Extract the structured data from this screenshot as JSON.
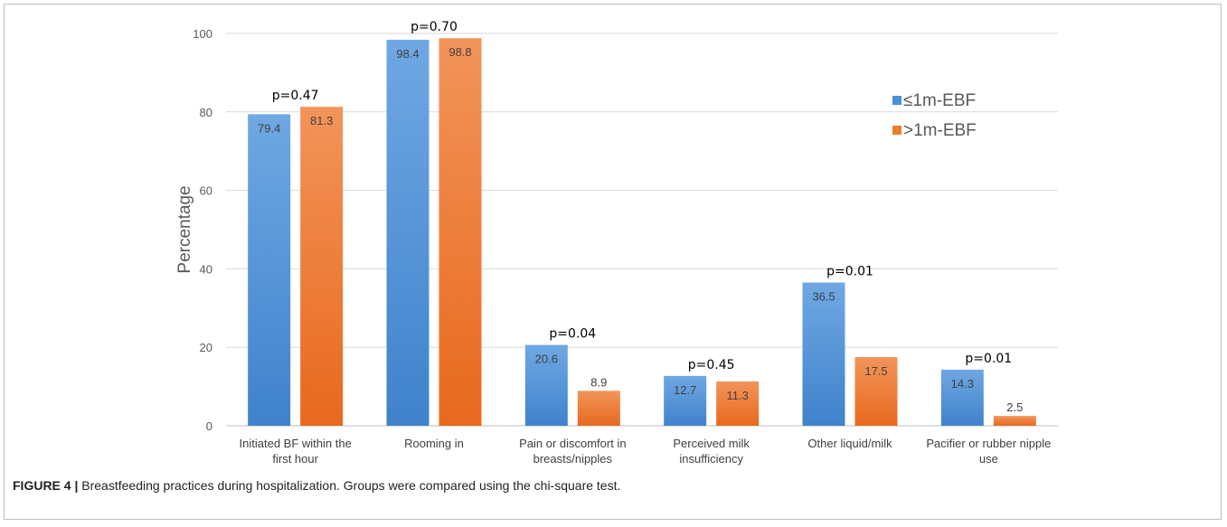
{
  "caption": {
    "label": "FIGURE 4 |",
    "text": " Breastfeeding practices during hospitalization. Groups were compared using the chi-square test."
  },
  "chart_data": {
    "type": "bar",
    "ylabel": "Percentage",
    "ylim": [
      0,
      100
    ],
    "yticks": [
      0,
      20,
      40,
      60,
      80,
      100
    ],
    "grid": true,
    "legend_position": "top-right",
    "categories": [
      [
        "Initiated BF within the",
        "first hour"
      ],
      [
        "Rooming in"
      ],
      [
        "Pain or discomfort in",
        "breasts/nipples"
      ],
      [
        "Perceived milk",
        "insufficiency"
      ],
      [
        "Other liquid/milk"
      ],
      [
        "Pacifier or rubber nipple",
        "use"
      ]
    ],
    "series": [
      {
        "name": "≤1m-EBF",
        "color": "#4a8fd6",
        "values": [
          79.4,
          98.4,
          20.6,
          12.7,
          36.5,
          14.3
        ]
      },
      {
        "name": ">1m-EBF",
        "color": "#ef7d2d",
        "values": [
          81.3,
          98.8,
          8.9,
          11.3,
          17.5,
          2.5
        ]
      }
    ],
    "annotations": [
      "p=0.47",
      "p=0.70",
      "p=0.04",
      "p=0.45",
      "p=0.01",
      "p=0.01"
    ]
  }
}
